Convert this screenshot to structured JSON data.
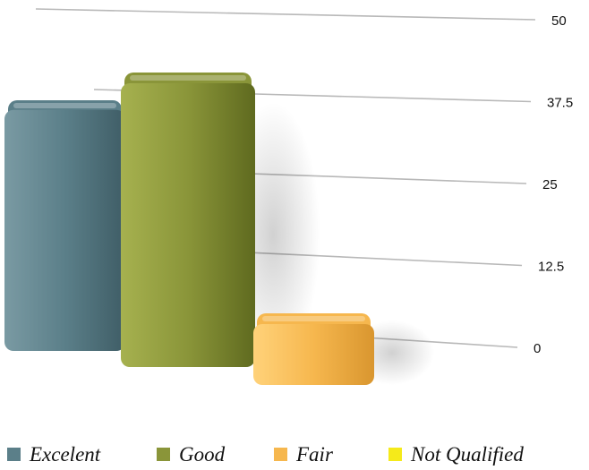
{
  "chart_data": {
    "type": "bar",
    "categories": [
      "Excelent",
      "Good",
      "Fair",
      "Not Qualified"
    ],
    "values": [
      40,
      47,
      8,
      0
    ],
    "colors": [
      "#5b7f89",
      "#8a9539",
      "#f6b74e",
      "#f5ea1a"
    ],
    "ylim": [
      0,
      50
    ],
    "yticks": [
      "0",
      "12.5",
      "25",
      "37.5",
      "50"
    ],
    "grid": true,
    "legend": "bottom"
  }
}
